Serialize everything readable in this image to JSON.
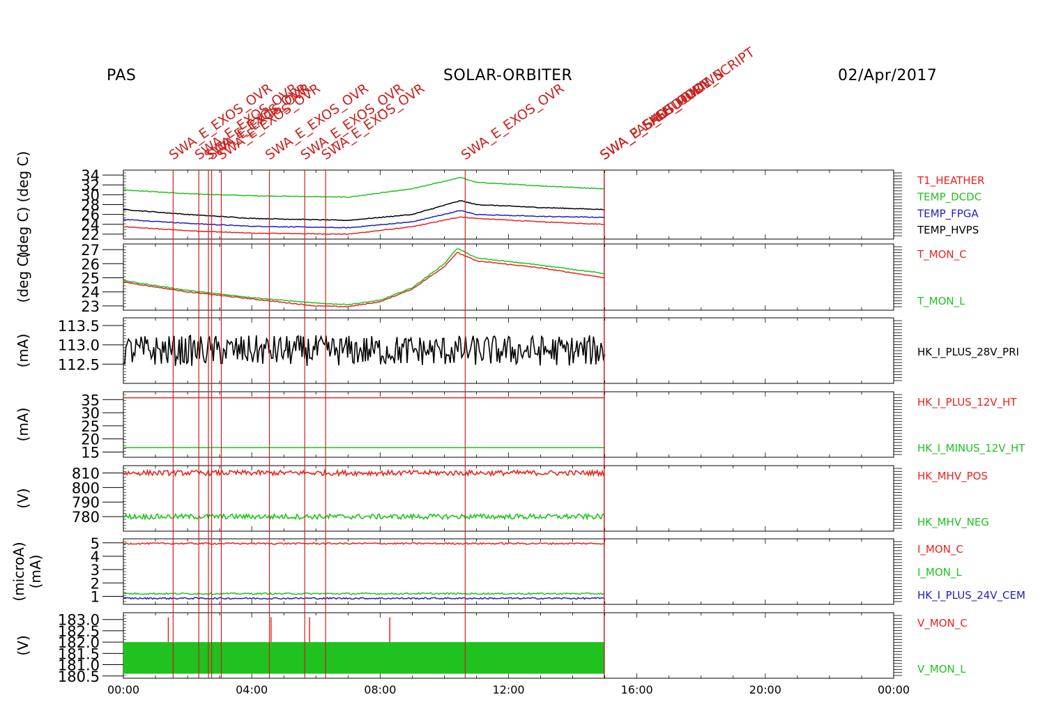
{
  "header": {
    "instrument": "PAS",
    "mission": "SOLAR-ORBITER",
    "date": "02/Apr/2017"
  },
  "colors": {
    "red": "#e8231f",
    "green": "#1fc21f",
    "blue": "#1f1fbf",
    "black": "#000000",
    "event": "#c8231f"
  },
  "chart_data": {
    "type": "line",
    "x_axis": {
      "range": [
        "00:00",
        "24:00"
      ],
      "ticks": [
        "00:00",
        "04:00",
        "08:00",
        "12:00",
        "16:00",
        "20:00",
        "00:00"
      ]
    },
    "events": [
      {
        "time": 1.55,
        "label": "SWA_E_EXOS_OVR"
      },
      {
        "time": 2.35,
        "label": "SWA_E_EXOS_OVR"
      },
      {
        "time": 2.65,
        "label": "SWA_E_EXOS_OVR"
      },
      {
        "time": 2.75,
        "label": "SWA_E_EXOS_OVR"
      },
      {
        "time": 3.05,
        "label": "SWA_E_EXOS_OVR"
      },
      {
        "time": 4.55,
        "label": "SWA_E_EXOS_OVR"
      },
      {
        "time": 5.65,
        "label": "SWA_E_EXOS_OVR"
      },
      {
        "time": 6.3,
        "label": "SWA_E_EXOS_OVR"
      },
      {
        "time": 10.65,
        "label": "SWA_E_EXOS_OVR"
      },
      {
        "time": 14.98,
        "label": "SWA_E_EXOS_OVR"
      },
      {
        "time": 14.98,
        "label": "SWA_PAS_SHUTDOWN"
      },
      {
        "time": 14.98,
        "label": "SWA_E_SHUTDOWN_SCRIPT"
      },
      {
        "time": 14.98,
        "label": "SWA_E_SAFE_MODE"
      }
    ],
    "panels": [
      {
        "ylabel": "(deg C)  (deg C)",
        "ylim": [
          21,
          35
        ],
        "yticks": [
          22,
          24,
          26,
          28,
          30,
          32,
          34
        ],
        "series": [
          {
            "name": "T1_HEATHER",
            "color": "red",
            "t": [
              0,
              2,
              4,
              7,
              9,
              10.5,
              11,
              13,
              15
            ],
            "v": [
              23.5,
              22.7,
              22.2,
              22,
              23.5,
              25.5,
              25.2,
              24.5,
              24
            ]
          },
          {
            "name": "TEMP_DCDC",
            "color": "green",
            "t": [
              0,
              2,
              4,
              7,
              9,
              10.5,
              11,
              13,
              15
            ],
            "v": [
              31,
              30.2,
              29.8,
              29.5,
              31.2,
              33.5,
              32.5,
              31.8,
              31.2
            ]
          },
          {
            "name": "TEMP_FPGA",
            "color": "blue",
            "t": [
              0,
              2,
              4,
              7,
              9,
              10.5,
              11,
              13,
              15
            ],
            "v": [
              25,
              24.2,
              23.6,
              23.3,
              24.5,
              26.8,
              26,
              25.6,
              25.4
            ]
          },
          {
            "name": "TEMP_HVPS",
            "color": "black",
            "t": [
              0,
              2,
              4,
              7,
              9,
              10.5,
              11,
              13,
              15
            ],
            "v": [
              27,
              26,
              25.2,
              24.8,
              26,
              28.8,
              28,
              27.4,
              27
            ]
          }
        ]
      },
      {
        "ylabel": "(deg C)",
        "ylim": [
          22.7,
          27.4
        ],
        "yticks": [
          23,
          24,
          25,
          26,
          27
        ],
        "series": [
          {
            "name": "T_MON_C",
            "color": "red",
            "t": [
              0,
              2,
              4,
              6,
              7,
              8,
              9,
              10,
              10.4,
              11,
              13,
              15
            ],
            "v": [
              24.7,
              24,
              23.5,
              23,
              22.95,
              23.3,
              24.2,
              25.8,
              26.8,
              26.2,
              25.7,
              25.0
            ]
          },
          {
            "name": "T_MON_L",
            "color": "green",
            "t": [
              0,
              2,
              4,
              6,
              7,
              8,
              9,
              10,
              10.4,
              11,
              13,
              15
            ],
            "v": [
              24.8,
              24.1,
              23.6,
              23.2,
              23.1,
              23.4,
              24.3,
              26.0,
              27.1,
              26.4,
              25.9,
              25.3
            ]
          }
        ]
      },
      {
        "ylabel": "(mA)",
        "ylim": [
          112.0,
          113.7
        ],
        "yticks": [
          112.5,
          113.0,
          113.5
        ],
        "series": [
          {
            "name": "HK_I_PLUS_28V_PRI",
            "color": "black",
            "t": [
              0,
              15
            ],
            "v": [
              112.85,
              112.85
            ]
          }
        ]
      },
      {
        "ylabel": "(mA)",
        "ylim": [
          13,
          38
        ],
        "yticks": [
          15,
          20,
          25,
          30,
          35
        ],
        "series": [
          {
            "name": "HK_I_PLUS_12V_HT",
            "color": "red",
            "t": [
              0,
              15
            ],
            "v": [
              35.7,
              35.7
            ]
          },
          {
            "name": "HK_I_MINUS_12V_HT",
            "color": "green",
            "t": [
              0,
              15
            ],
            "v": [
              16.7,
              16.7
            ]
          }
        ]
      },
      {
        "ylabel": "(V)",
        "ylim": [
          770,
          815
        ],
        "yticks": [
          780,
          790,
          800,
          810
        ],
        "series": [
          {
            "name": "HK_MHV_POS",
            "color": "red",
            "t": [
              0,
              15
            ],
            "v": [
              810,
              810
            ]
          },
          {
            "name": "HK_MHV_NEG",
            "color": "green",
            "t": [
              0,
              15
            ],
            "v": [
              780,
              780
            ]
          }
        ]
      },
      {
        "ylabel": "(microA)\n(mA)",
        "ylim": [
          0.4,
          5.3
        ],
        "yticks": [
          1,
          2,
          3,
          4,
          5
        ],
        "series": [
          {
            "name": "I_MON_C",
            "color": "red",
            "t": [
              0,
              15
            ],
            "v": [
              4.95,
              4.95
            ]
          },
          {
            "name": "I_MON_L",
            "color": "green",
            "t": [
              0,
              15
            ],
            "v": [
              1.2,
              1.2
            ]
          },
          {
            "name": "HK_I_PLUS_24V_CEM",
            "color": "blue",
            "t": [
              0,
              15
            ],
            "v": [
              0.85,
              0.85
            ]
          }
        ]
      },
      {
        "ylabel": "(V)",
        "ylim": [
          180.4,
          183.3
        ],
        "yticks": [
          180.5,
          181.0,
          181.5,
          182.0,
          182.5,
          183.0
        ],
        "series": [
          {
            "name": "V_MON_C",
            "color": "red",
            "t": [
              0,
              15
            ],
            "v": [
              181.9,
              181.9
            ]
          },
          {
            "name": "V_MON_L",
            "color": "green",
            "t": [
              0,
              15
            ],
            "v": [
              181.0,
              181.0
            ]
          }
        ]
      }
    ]
  }
}
